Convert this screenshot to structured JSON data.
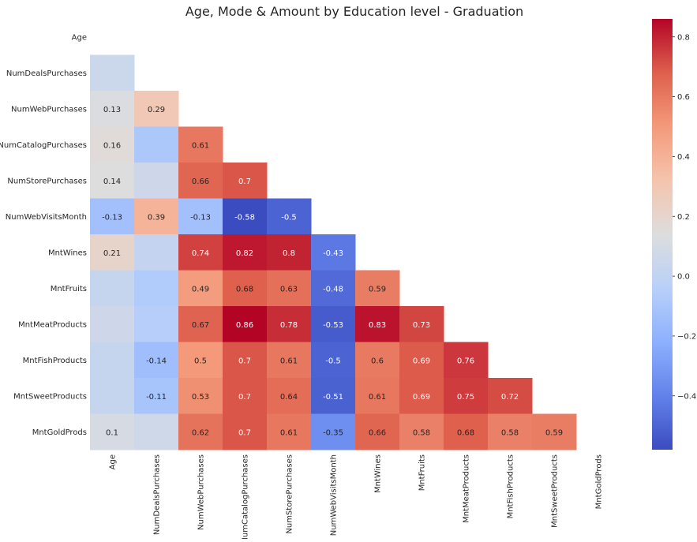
{
  "chart_data": {
    "type": "heatmap",
    "title": "Age, Mode & Amount by Education level - Graduation",
    "xlabel": "",
    "ylabel": "",
    "colormap": "coolwarm",
    "mask": "upper-triangle-and-diagonal",
    "labels": [
      "Age",
      "NumDealsPurchases",
      "NumWebPurchases",
      "NumCatalogPurchases",
      "NumStorePurchases",
      "NumWebVisitsMonth",
      "MntWines",
      "MntFruits",
      "MntMeatProducts",
      "MntFishProducts",
      "MntSweetProducts",
      "MntGoldProds"
    ],
    "vmin": -0.58,
    "vmax": 0.86,
    "colorbar_ticks": [
      "0.8",
      "0.6",
      "0.4",
      "0.2",
      "0.0",
      "−0.2",
      "−0.4"
    ],
    "colorbar_tick_values": [
      0.8,
      0.6,
      0.4,
      0.2,
      0.0,
      -0.2,
      -0.4
    ],
    "cells": [
      {
        "row": 1,
        "col": 0,
        "value": 0.05,
        "text": ""
      },
      {
        "row": 2,
        "col": 0,
        "value": 0.13,
        "text": "0.13"
      },
      {
        "row": 2,
        "col": 1,
        "value": 0.29,
        "text": "0.29"
      },
      {
        "row": 3,
        "col": 0,
        "value": 0.16,
        "text": "0.16"
      },
      {
        "row": 3,
        "col": 1,
        "value": -0.09,
        "text": ""
      },
      {
        "row": 3,
        "col": 2,
        "value": 0.61,
        "text": "0.61"
      },
      {
        "row": 4,
        "col": 0,
        "value": 0.14,
        "text": "0.14"
      },
      {
        "row": 4,
        "col": 1,
        "value": 0.06,
        "text": ""
      },
      {
        "row": 4,
        "col": 2,
        "value": 0.66,
        "text": "0.66"
      },
      {
        "row": 4,
        "col": 3,
        "value": 0.7,
        "text": "0.7"
      },
      {
        "row": 5,
        "col": 0,
        "value": -0.13,
        "text": "-0.13"
      },
      {
        "row": 5,
        "col": 1,
        "value": 0.39,
        "text": "0.39"
      },
      {
        "row": 5,
        "col": 2,
        "value": -0.13,
        "text": "-0.13"
      },
      {
        "row": 5,
        "col": 3,
        "value": -0.58,
        "text": "-0.58"
      },
      {
        "row": 5,
        "col": 4,
        "value": -0.5,
        "text": "-0.5"
      },
      {
        "row": 6,
        "col": 0,
        "value": 0.21,
        "text": "0.21"
      },
      {
        "row": 6,
        "col": 1,
        "value": 0.02,
        "text": ""
      },
      {
        "row": 6,
        "col": 2,
        "value": 0.74,
        "text": "0.74"
      },
      {
        "row": 6,
        "col": 3,
        "value": 0.82,
        "text": "0.82"
      },
      {
        "row": 6,
        "col": 4,
        "value": 0.8,
        "text": "0.8"
      },
      {
        "row": 6,
        "col": 5,
        "value": -0.43,
        "text": "-0.43"
      },
      {
        "row": 7,
        "col": 0,
        "value": 0.03,
        "text": ""
      },
      {
        "row": 7,
        "col": 1,
        "value": -0.07,
        "text": ""
      },
      {
        "row": 7,
        "col": 2,
        "value": 0.49,
        "text": "0.49"
      },
      {
        "row": 7,
        "col": 3,
        "value": 0.68,
        "text": "0.68"
      },
      {
        "row": 7,
        "col": 4,
        "value": 0.63,
        "text": "0.63"
      },
      {
        "row": 7,
        "col": 5,
        "value": -0.48,
        "text": "-0.48"
      },
      {
        "row": 7,
        "col": 6,
        "value": 0.59,
        "text": "0.59"
      },
      {
        "row": 8,
        "col": 0,
        "value": 0.06,
        "text": ""
      },
      {
        "row": 8,
        "col": 1,
        "value": -0.05,
        "text": ""
      },
      {
        "row": 8,
        "col": 2,
        "value": 0.67,
        "text": "0.67"
      },
      {
        "row": 8,
        "col": 3,
        "value": 0.86,
        "text": "0.86"
      },
      {
        "row": 8,
        "col": 4,
        "value": 0.78,
        "text": "0.78"
      },
      {
        "row": 8,
        "col": 5,
        "value": -0.53,
        "text": "-0.53"
      },
      {
        "row": 8,
        "col": 6,
        "value": 0.83,
        "text": "0.83"
      },
      {
        "row": 8,
        "col": 7,
        "value": 0.73,
        "text": "0.73"
      },
      {
        "row": 9,
        "col": 0,
        "value": 0.03,
        "text": ""
      },
      {
        "row": 9,
        "col": 1,
        "value": -0.14,
        "text": "-0.14"
      },
      {
        "row": 9,
        "col": 2,
        "value": 0.5,
        "text": "0.5"
      },
      {
        "row": 9,
        "col": 3,
        "value": 0.7,
        "text": "0.7"
      },
      {
        "row": 9,
        "col": 4,
        "value": 0.61,
        "text": "0.61"
      },
      {
        "row": 9,
        "col": 5,
        "value": -0.5,
        "text": "-0.5"
      },
      {
        "row": 9,
        "col": 6,
        "value": 0.6,
        "text": "0.6"
      },
      {
        "row": 9,
        "col": 7,
        "value": 0.69,
        "text": "0.69"
      },
      {
        "row": 9,
        "col": 8,
        "value": 0.76,
        "text": "0.76"
      },
      {
        "row": 10,
        "col": 0,
        "value": 0.03,
        "text": ""
      },
      {
        "row": 10,
        "col": 1,
        "value": -0.11,
        "text": "-0.11"
      },
      {
        "row": 10,
        "col": 2,
        "value": 0.53,
        "text": "0.53"
      },
      {
        "row": 10,
        "col": 3,
        "value": 0.7,
        "text": "0.7"
      },
      {
        "row": 10,
        "col": 4,
        "value": 0.64,
        "text": "0.64"
      },
      {
        "row": 10,
        "col": 5,
        "value": -0.51,
        "text": "-0.51"
      },
      {
        "row": 10,
        "col": 6,
        "value": 0.61,
        "text": "0.61"
      },
      {
        "row": 10,
        "col": 7,
        "value": 0.69,
        "text": "0.69"
      },
      {
        "row": 10,
        "col": 8,
        "value": 0.75,
        "text": "0.75"
      },
      {
        "row": 10,
        "col": 9,
        "value": 0.72,
        "text": "0.72"
      },
      {
        "row": 11,
        "col": 0,
        "value": 0.1,
        "text": "0.1"
      },
      {
        "row": 11,
        "col": 1,
        "value": 0.07,
        "text": ""
      },
      {
        "row": 11,
        "col": 2,
        "value": 0.62,
        "text": "0.62"
      },
      {
        "row": 11,
        "col": 3,
        "value": 0.7,
        "text": "0.7"
      },
      {
        "row": 11,
        "col": 4,
        "value": 0.61,
        "text": "0.61"
      },
      {
        "row": 11,
        "col": 5,
        "value": -0.35,
        "text": "-0.35"
      },
      {
        "row": 11,
        "col": 6,
        "value": 0.66,
        "text": "0.66"
      },
      {
        "row": 11,
        "col": 7,
        "value": 0.58,
        "text": "0.58"
      },
      {
        "row": 11,
        "col": 8,
        "value": 0.68,
        "text": "0.68"
      },
      {
        "row": 11,
        "col": 9,
        "value": 0.58,
        "text": "0.58"
      },
      {
        "row": 11,
        "col": 10,
        "value": 0.59,
        "text": "0.59"
      }
    ]
  }
}
